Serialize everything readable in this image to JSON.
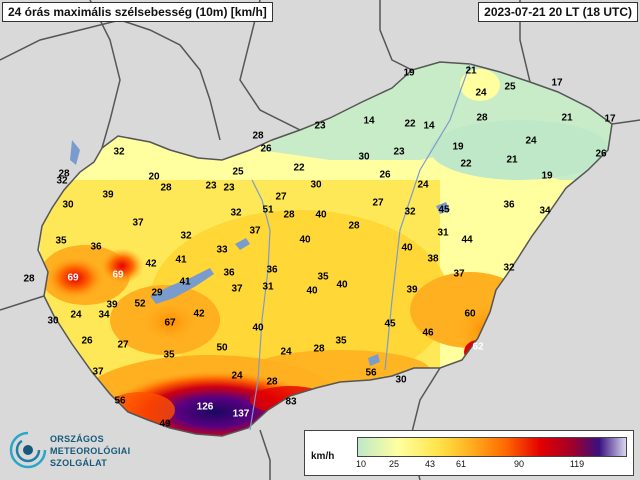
{
  "header": {
    "title": "24 órás maximális szélsebesség (10m) [km/h]",
    "datetime": "2023-07-21 20 LT (18 UTC)"
  },
  "colors": {
    "background": "#d9d9d9",
    "border_line": "#555555",
    "lake": "#7a9ccc",
    "scale": [
      "#bfe8c8",
      "#ffffa0",
      "#ffe44a",
      "#ffb020",
      "#ff6a00",
      "#e40000",
      "#a0002a",
      "#3a1080",
      "#d8d8f0"
    ]
  },
  "legend": {
    "unit": "km/h",
    "ticks": [
      "10",
      "25",
      "43",
      "61",
      "90",
      "119"
    ]
  },
  "logo": {
    "lines": [
      "ORSZÁGOS",
      "METEOROLÓGIAI",
      "SZOLGÁLAT"
    ]
  },
  "stations": [
    {
      "v": "19"
    },
    {
      "v": "21"
    },
    {
      "v": "17"
    },
    {
      "v": "24"
    },
    {
      "v": "25"
    },
    {
      "v": "28"
    },
    {
      "v": "23"
    },
    {
      "v": "14"
    },
    {
      "v": "22"
    },
    {
      "v": "14"
    },
    {
      "v": "21"
    },
    {
      "v": "17"
    },
    {
      "v": "24"
    },
    {
      "v": "19"
    },
    {
      "v": "22"
    },
    {
      "v": "21"
    },
    {
      "v": "26"
    },
    {
      "v": "19"
    },
    {
      "v": "28"
    },
    {
      "v": "26"
    },
    {
      "v": "32"
    },
    {
      "v": "25"
    },
    {
      "v": "22"
    },
    {
      "v": "30"
    },
    {
      "v": "23"
    },
    {
      "v": "26"
    },
    {
      "v": "24"
    },
    {
      "v": "20"
    },
    {
      "v": "28"
    },
    {
      "v": "23"
    },
    {
      "v": "23"
    },
    {
      "v": "27"
    },
    {
      "v": "30"
    },
    {
      "v": "28"
    },
    {
      "v": "32"
    },
    {
      "v": "30"
    },
    {
      "v": "39"
    },
    {
      "v": "32"
    },
    {
      "v": "51"
    },
    {
      "v": "28"
    },
    {
      "v": "40"
    },
    {
      "v": "27"
    },
    {
      "v": "32"
    },
    {
      "v": "45"
    },
    {
      "v": "36"
    },
    {
      "v": "34"
    },
    {
      "v": "35"
    },
    {
      "v": "36"
    },
    {
      "v": "37"
    },
    {
      "v": "32"
    },
    {
      "v": "37"
    },
    {
      "v": "40"
    },
    {
      "v": "28"
    },
    {
      "v": "31"
    },
    {
      "v": "44"
    },
    {
      "v": "33"
    },
    {
      "v": "40"
    },
    {
      "v": "38"
    },
    {
      "v": "28"
    },
    {
      "v": "69"
    },
    {
      "v": "69"
    },
    {
      "v": "42"
    },
    {
      "v": "41"
    },
    {
      "v": "36"
    },
    {
      "v": "36"
    },
    {
      "v": "35"
    },
    {
      "v": "37"
    },
    {
      "v": "32"
    },
    {
      "v": "29"
    },
    {
      "v": "41"
    },
    {
      "v": "37"
    },
    {
      "v": "31"
    },
    {
      "v": "40"
    },
    {
      "v": "40"
    },
    {
      "v": "39"
    },
    {
      "v": "30"
    },
    {
      "v": "24"
    },
    {
      "v": "34"
    },
    {
      "v": "39"
    },
    {
      "v": "52"
    },
    {
      "v": "67"
    },
    {
      "v": "42"
    },
    {
      "v": "45"
    },
    {
      "v": "46"
    },
    {
      "v": "60"
    },
    {
      "v": "26"
    },
    {
      "v": "27"
    },
    {
      "v": "40"
    },
    {
      "v": "35"
    },
    {
      "v": "50"
    },
    {
      "v": "24"
    },
    {
      "v": "28"
    },
    {
      "v": "35"
    },
    {
      "v": "62"
    },
    {
      "v": "37"
    },
    {
      "v": "24"
    },
    {
      "v": "28"
    },
    {
      "v": "56"
    },
    {
      "v": "30"
    },
    {
      "v": "56"
    },
    {
      "v": "126"
    },
    {
      "v": "137"
    },
    {
      "v": "83"
    },
    {
      "v": "49"
    }
  ]
}
